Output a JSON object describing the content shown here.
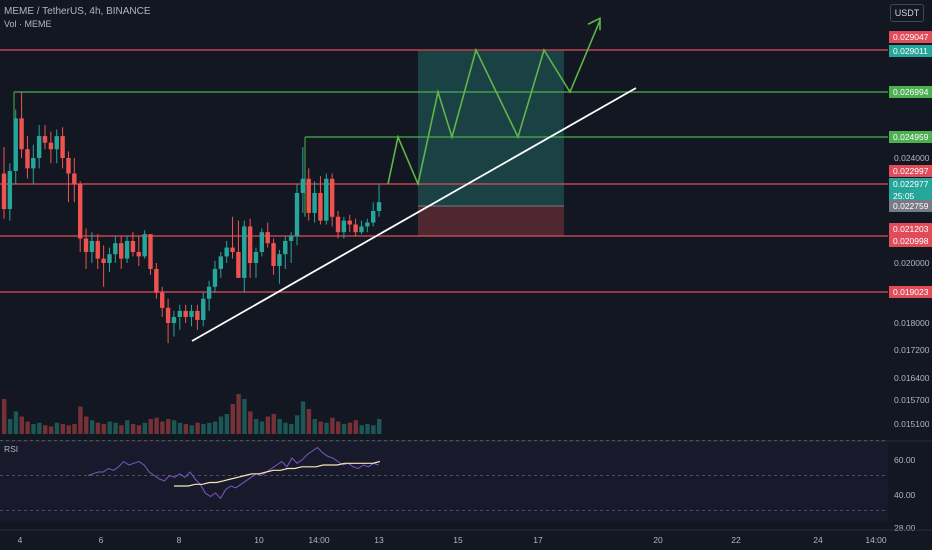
{
  "header": {
    "symbol_line": "MEME / TetherUS, 4h, BINANCE",
    "volume_label": "Vol · MEME",
    "currency_button": "USDT",
    "rsi_label": "RSI"
  },
  "colors": {
    "background": "#131722",
    "up": "#26a69a",
    "down": "#ef5350",
    "resistance": "#e04c5a",
    "target_line": "#4caf50",
    "projection": "#5fb548",
    "trendline": "#ffffff",
    "rsi_line": "#7e57c2",
    "rsi_ma": "#f5e6b8"
  },
  "chart_data": [
    {
      "type": "candlestick",
      "title": "MEME / TetherUS, 4h, BINANCE",
      "x_ticks": [
        "4",
        "6",
        "8",
        "10",
        "14:00",
        "13",
        "15",
        "17",
        "20",
        "22",
        "24",
        "14:00"
      ],
      "y_ticks": [
        "0.024000",
        "0.020000",
        "0.018000",
        "0.017200",
        "0.016400",
        "0.015700",
        "0.015100"
      ],
      "price_labels": [
        {
          "text": "0.029047",
          "color": "#e04c5a"
        },
        {
          "text": "0.029011",
          "color": "#26a69a"
        },
        {
          "text": "0.026994",
          "color": "#4caf50"
        },
        {
          "text": "0.024959",
          "color": "#4caf50"
        },
        {
          "text": "0.022997",
          "color": "#e04c5a"
        },
        {
          "text": "0.022977",
          "color": "#26a69a"
        },
        {
          "text": "25:05",
          "color": "#26a69a"
        },
        {
          "text": "0.022759",
          "color": "#787b86"
        },
        {
          "text": "0.021203",
          "color": "#e04c5a"
        },
        {
          "text": "0.020998",
          "color": "#e04c5a"
        },
        {
          "text": "0.019023",
          "color": "#e04c5a"
        }
      ],
      "horizontal_levels": [
        {
          "price": 0.029047,
          "kind": "resistance"
        },
        {
          "price": 0.026994,
          "kind": "target"
        },
        {
          "price": 0.024959,
          "kind": "target"
        },
        {
          "price": 0.022997,
          "kind": "resistance"
        },
        {
          "price": 0.021203,
          "kind": "resistance"
        },
        {
          "price": 0.019023,
          "kind": "resistance"
        }
      ],
      "position": {
        "entry": 0.022759,
        "target": 0.029011,
        "stop": 0.021203
      },
      "candles": [
        [
          0.0234,
          0.0245,
          0.0221,
          0.0226
        ],
        [
          0.0226,
          0.0238,
          0.022,
          0.0235
        ],
        [
          0.0235,
          0.0262,
          0.023,
          0.0258
        ],
        [
          0.0258,
          0.027,
          0.024,
          0.0244
        ],
        [
          0.0244,
          0.025,
          0.0232,
          0.0236
        ],
        [
          0.0236,
          0.0246,
          0.023,
          0.024
        ],
        [
          0.024,
          0.0255,
          0.0236,
          0.025
        ],
        [
          0.025,
          0.0255,
          0.0244,
          0.0247
        ],
        [
          0.0247,
          0.0252,
          0.0238,
          0.0244
        ],
        [
          0.0244,
          0.0253,
          0.0238,
          0.025
        ],
        [
          0.025,
          0.0254,
          0.0236,
          0.024
        ],
        [
          0.024,
          0.0243,
          0.0228,
          0.0234
        ],
        [
          0.0234,
          0.024,
          0.0228,
          0.023
        ],
        [
          0.023,
          0.0231,
          0.0205,
          0.0211
        ],
        [
          0.0211,
          0.0216,
          0.0198,
          0.0205
        ],
        [
          0.0205,
          0.0214,
          0.02,
          0.021
        ],
        [
          0.021,
          0.0213,
          0.0198,
          0.0202
        ],
        [
          0.0202,
          0.0208,
          0.0192,
          0.02
        ],
        [
          0.02,
          0.0207,
          0.0197,
          0.0204
        ],
        [
          0.0204,
          0.0212,
          0.02,
          0.0209
        ],
        [
          0.0209,
          0.0212,
          0.0198,
          0.0202
        ],
        [
          0.0202,
          0.0212,
          0.02,
          0.021
        ],
        [
          0.021,
          0.0214,
          0.0203,
          0.0205
        ],
        [
          0.0205,
          0.0212,
          0.0199,
          0.0203
        ],
        [
          0.0203,
          0.0215,
          0.0202,
          0.0213
        ],
        [
          0.0213,
          0.0213,
          0.0196,
          0.0198
        ],
        [
          0.0198,
          0.02,
          0.0188,
          0.019
        ],
        [
          0.019,
          0.0192,
          0.0182,
          0.0185
        ],
        [
          0.0185,
          0.0188,
          0.0174,
          0.018
        ],
        [
          0.018,
          0.0184,
          0.0176,
          0.0182
        ],
        [
          0.0182,
          0.0186,
          0.0178,
          0.0184
        ],
        [
          0.0184,
          0.0186,
          0.018,
          0.0182
        ],
        [
          0.0182,
          0.0186,
          0.0179,
          0.0184
        ],
        [
          0.0184,
          0.0186,
          0.0178,
          0.0181
        ],
        [
          0.0181,
          0.019,
          0.0179,
          0.0188
        ],
        [
          0.0188,
          0.0194,
          0.0184,
          0.0192
        ],
        [
          0.0192,
          0.0201,
          0.019,
          0.0198
        ],
        [
          0.0198,
          0.0205,
          0.0195,
          0.0203
        ],
        [
          0.0203,
          0.021,
          0.02,
          0.0207
        ],
        [
          0.0207,
          0.0222,
          0.0202,
          0.0205
        ],
        [
          0.0205,
          0.022,
          0.0195,
          0.0195
        ],
        [
          0.0195,
          0.022,
          0.019,
          0.0217
        ],
        [
          0.0217,
          0.0221,
          0.0195,
          0.02
        ],
        [
          0.02,
          0.0207,
          0.0195,
          0.0205
        ],
        [
          0.0205,
          0.0216,
          0.0203,
          0.0214
        ],
        [
          0.0214,
          0.0219,
          0.0207,
          0.0209
        ],
        [
          0.0209,
          0.0211,
          0.0196,
          0.0199
        ],
        [
          0.0199,
          0.0206,
          0.0193,
          0.0204
        ],
        [
          0.0204,
          0.0212,
          0.0198,
          0.021
        ],
        [
          0.021,
          0.0214,
          0.02,
          0.0212
        ],
        [
          0.0212,
          0.023,
          0.0208,
          0.0229
        ],
        [
          0.0229,
          0.0245,
          0.0224,
          0.0232
        ],
        [
          0.0232,
          0.0236,
          0.022,
          0.0224
        ],
        [
          0.0224,
          0.0231,
          0.0219,
          0.0229
        ],
        [
          0.0229,
          0.0233,
          0.0218,
          0.022
        ],
        [
          0.022,
          0.0234,
          0.0218,
          0.0232
        ],
        [
          0.0232,
          0.0234,
          0.0217,
          0.0222
        ],
        [
          0.0222,
          0.0225,
          0.0211,
          0.0214
        ],
        [
          0.0214,
          0.0222,
          0.0211,
          0.022
        ],
        [
          0.022,
          0.0223,
          0.0214,
          0.0218
        ],
        [
          0.0218,
          0.0221,
          0.0212,
          0.0214
        ],
        [
          0.0214,
          0.022,
          0.0213,
          0.0217
        ],
        [
          0.0217,
          0.0221,
          0.0214,
          0.0219
        ],
        [
          0.0219,
          0.0228,
          0.0217,
          0.0225
        ],
        [
          0.0225,
          0.023,
          0.0222,
          0.0228
        ]
      ],
      "volume": [
        28,
        12,
        18,
        14,
        10,
        8,
        9,
        7,
        6,
        9,
        8,
        7,
        8,
        22,
        14,
        11,
        9,
        8,
        10,
        9,
        7,
        11,
        8,
        7,
        9,
        12,
        13,
        10,
        12,
        11,
        9,
        8,
        7,
        9,
        8,
        9,
        10,
        14,
        16,
        24,
        32,
        28,
        18,
        12,
        10,
        14,
        16,
        12,
        9,
        8,
        15,
        26,
        20,
        12,
        10,
        9,
        13,
        10,
        8,
        9,
        11,
        7,
        8,
        7,
        12
      ],
      "rsi": [
        50,
        51,
        52,
        52,
        54,
        53,
        55,
        58,
        56,
        57,
        58,
        56,
        52,
        50,
        48,
        47,
        50,
        49,
        51,
        49,
        52,
        48,
        45,
        40,
        38,
        40,
        37,
        42,
        44,
        43,
        45,
        47,
        49,
        51,
        50,
        52,
        54,
        56,
        58,
        55,
        60,
        57,
        59,
        62,
        64,
        66,
        63,
        61,
        60,
        58,
        56,
        57,
        55,
        54,
        56,
        55,
        57,
        56
      ],
      "rsi_ma": [
        44,
        44,
        44,
        45,
        45,
        46,
        46,
        47,
        48,
        49,
        50,
        51,
        51,
        52,
        53,
        53,
        54,
        54,
        55,
        55,
        55,
        56,
        56,
        56,
        57,
        57,
        57,
        57,
        57,
        58
      ],
      "rsi_ticks": [
        "60.00",
        "40.00",
        "28.00"
      ],
      "forecast_path": [
        [
          0.023,
          0.0249
        ],
        [
          0.023,
          0.027
        ],
        [
          0.0249,
          0.029
        ],
        [
          0.0249,
          0.027
        ],
        [
          0.029,
          0.027
        ],
        [
          0.03
        ]
      ]
    }
  ]
}
